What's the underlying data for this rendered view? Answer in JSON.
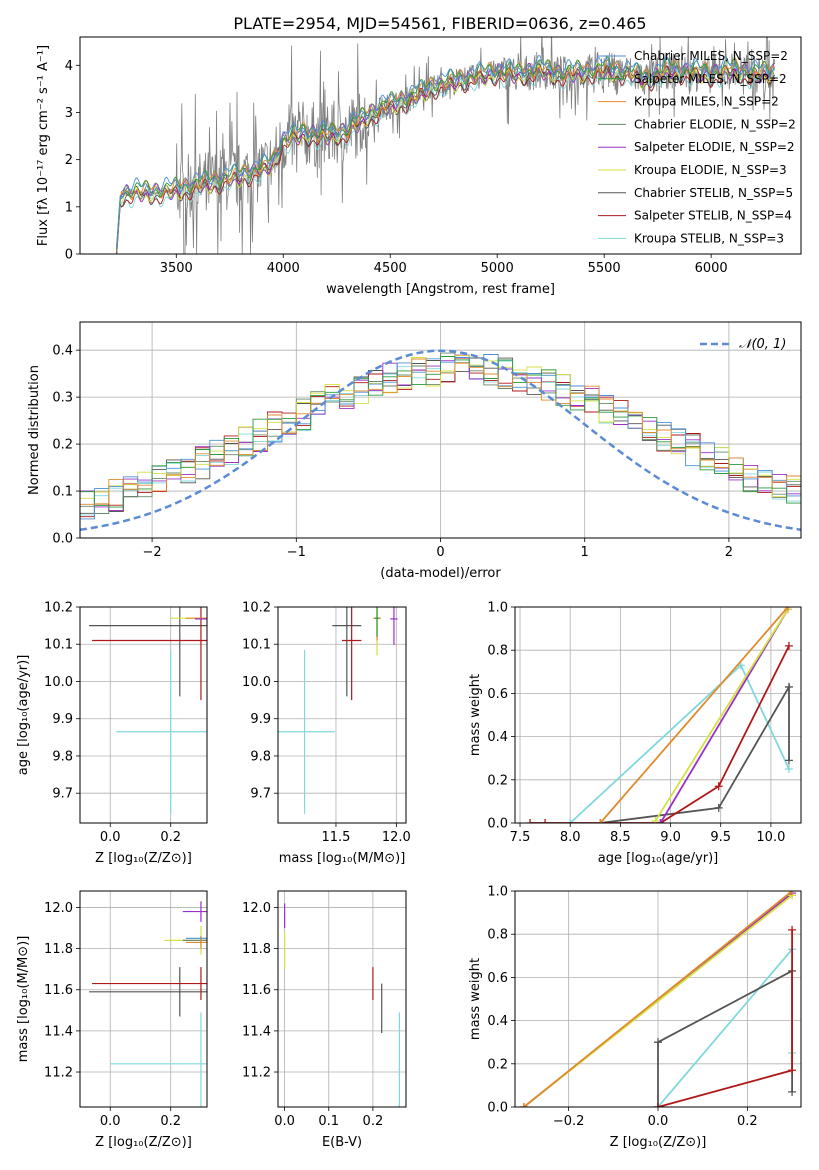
{
  "figure_title": "PLATE=2954, MJD=54561, FIBERID=0636, z=0.465",
  "colors": {
    "chabrier_miles": "#4c8fd6",
    "salpeter_miles": "#2a9a3a",
    "kroupa_miles": "#e08a2e",
    "chabrier_elodie": "#6a8a6a",
    "salpeter_elodie": "#9b30c8",
    "kroupa_elodie": "#d4e040",
    "chabrier_stelib": "#555555",
    "salpeter_stelib": "#b01818",
    "kroupa_stelib": "#80d8dc",
    "data": "#808080",
    "normal": "#5b8bd4"
  },
  "chart_data": [
    {
      "id": "spectrum",
      "type": "line",
      "xlabel": "wavelength [Angstrom, rest frame]",
      "ylabel": "Flux [fλ 10⁻¹⁷ erg cm⁻² s⁻¹ A⁻¹]",
      "xlim": [
        3050,
        6420
      ],
      "ylim": [
        0,
        4.6
      ],
      "xticks": [
        3500,
        4000,
        4500,
        5000,
        5500,
        6000
      ],
      "yticks": [
        0,
        1,
        2,
        3,
        4
      ],
      "legend_position": "top-right",
      "series": [
        {
          "name": "Chabrier MILES, N_SSP=2",
          "key": "chabrier_miles"
        },
        {
          "name": "Salpeter MILES, N_SSP=2",
          "key": "salpeter_miles"
        },
        {
          "name": "Kroupa MILES, N_SSP=2",
          "key": "kroupa_miles"
        },
        {
          "name": "Chabrier ELODIE, N_SSP=2",
          "key": "chabrier_elodie"
        },
        {
          "name": "Salpeter ELODIE, N_SSP=2",
          "key": "salpeter_elodie"
        },
        {
          "name": "Kroupa ELODIE, N_SSP=3",
          "key": "kroupa_elodie"
        },
        {
          "name": "Chabrier STELIB, N_SSP=5",
          "key": "chabrier_stelib"
        },
        {
          "name": "Salpeter STELIB, N_SSP=4",
          "key": "salpeter_stelib"
        },
        {
          "name": "Kroupa STELIB, N_SSP=3",
          "key": "kroupa_stelib"
        }
      ],
      "continuum": {
        "x": [
          3220,
          3240,
          3300,
          3400,
          3500,
          3600,
          3700,
          3800,
          3900,
          3950,
          4000,
          4100,
          4200,
          4300,
          4400,
          4500,
          4600,
          4700,
          4800,
          4900,
          5000,
          5100,
          5200,
          5300,
          5400,
          5500,
          5600,
          5700,
          5800,
          5900,
          6000,
          6100,
          6200,
          6300
        ],
        "y": [
          0.0,
          1.25,
          1.3,
          1.3,
          1.35,
          1.45,
          1.55,
          1.65,
          1.8,
          1.9,
          2.4,
          2.55,
          2.5,
          2.6,
          2.95,
          3.15,
          3.3,
          3.55,
          3.65,
          3.75,
          3.85,
          3.8,
          3.9,
          3.8,
          3.85,
          3.9,
          3.85,
          3.7,
          3.9,
          3.85,
          3.8,
          3.9,
          3.8,
          3.85
        ]
      }
    },
    {
      "id": "residuals",
      "type": "area",
      "xlabel": "(data-model)/error",
      "ylabel": "Normed distribution",
      "xlim": [
        -2.5,
        2.5
      ],
      "ylim": [
        0,
        0.46
      ],
      "xticks": [
        -2,
        -1,
        0,
        1,
        2
      ],
      "yticks": [
        0.0,
        0.1,
        0.2,
        0.3,
        0.4
      ],
      "legend_position": "top-right",
      "normal_label": "𝒩(0, 1)",
      "normal": {
        "mean": 0,
        "sigma": 1
      }
    },
    {
      "id": "age_vs_Z",
      "type": "scatter",
      "xlabel": "Z [log₁₀(Z/Z⊙)]",
      "ylabel": "age  [log₁₀(age/yr)]",
      "xlim": [
        -0.1,
        0.32
      ],
      "ylim": [
        9.62,
        10.2
      ],
      "xticks": [
        0.0,
        0.2
      ],
      "yticks": [
        9.7,
        9.8,
        9.9,
        10.0,
        10.1,
        10.2
      ],
      "points": [
        {
          "key": "kroupa_stelib",
          "x": 0.2,
          "y": 9.865,
          "xerr": 0.18,
          "yerr": 0.22
        },
        {
          "key": "chabrier_stelib",
          "x": 0.23,
          "y": 10.15,
          "xerr": 0.3,
          "yerr": 0.19
        },
        {
          "key": "salpeter_stelib",
          "x": 0.3,
          "y": 10.11,
          "xerr": 0.36,
          "yerr": 0.16
        },
        {
          "key": "kroupa_elodie",
          "x": 0.3,
          "y": 10.17,
          "xerr": 0.1,
          "yerr": 0.0
        },
        {
          "key": "kroupa_miles",
          "x": 0.3,
          "y": 10.17,
          "xerr": 0.05,
          "yerr": 0.0
        },
        {
          "key": "salpeter_elodie",
          "x": 0.3,
          "y": 10.168,
          "xerr": 0.02,
          "yerr": 0.0
        }
      ]
    },
    {
      "id": "age_vs_mass",
      "type": "scatter",
      "xlabel": "mass [log₁₀(M/M⊙)]",
      "ylabel": "",
      "xlim": [
        11.02,
        12.08
      ],
      "ylim": [
        9.62,
        10.2
      ],
      "xticks": [
        11.5,
        12.0
      ],
      "yticks": [
        9.7,
        9.8,
        9.9,
        10.0,
        10.1,
        10.2
      ],
      "points": [
        {
          "key": "kroupa_stelib",
          "x": 11.24,
          "y": 9.865,
          "xerr": 0.25,
          "yerr": 0.22
        },
        {
          "key": "chabrier_stelib",
          "x": 11.59,
          "y": 10.15,
          "xerr": 0.12,
          "yerr": 0.19
        },
        {
          "key": "salpeter_stelib",
          "x": 11.63,
          "y": 10.11,
          "xerr": 0.08,
          "yerr": 0.16
        },
        {
          "key": "kroupa_elodie",
          "x": 11.84,
          "y": 10.17,
          "xerr": 0.03,
          "yerr": 0.1
        },
        {
          "key": "kroupa_miles",
          "x": 11.84,
          "y": 10.17,
          "xerr": 0.03,
          "yerr": 0.06
        },
        {
          "key": "salpeter_elodie",
          "x": 11.98,
          "y": 10.168,
          "xerr": 0.03,
          "yerr": 0.07
        },
        {
          "key": "salpeter_miles",
          "x": 11.84,
          "y": 10.17,
          "xerr": 0.02,
          "yerr": 0.05
        }
      ]
    },
    {
      "id": "massweight_vs_age",
      "type": "line",
      "xlabel": "age  [log₁₀(age/yr)]",
      "ylabel": "mass weight",
      "xlim": [
        7.45,
        10.3
      ],
      "ylim": [
        0,
        1.0
      ],
      "xticks": [
        7.5,
        8.0,
        8.5,
        9.0,
        9.5,
        10.0
      ],
      "yticks": [
        0.0,
        0.2,
        0.4,
        0.6,
        0.8,
        1.0
      ],
      "series": [
        {
          "key": "kroupa_stelib",
          "x": [
            8.0,
            9.7,
            10.18
          ],
          "y": [
            0.0,
            0.73,
            0.25
          ]
        },
        {
          "key": "chabrier_stelib",
          "x": [
            8.3,
            9.48,
            10.18,
            10.18
          ],
          "y": [
            0.0,
            0.07,
            0.63,
            0.29
          ]
        },
        {
          "key": "salpeter_stelib",
          "x": [
            7.6,
            7.75,
            8.9,
            9.48,
            10.18
          ],
          "y": [
            0.0,
            0.0,
            0.0,
            0.17,
            0.82
          ]
        },
        {
          "key": "salpeter_elodie",
          "x": [
            8.9,
            10.17
          ],
          "y": [
            0.0,
            0.99
          ]
        },
        {
          "key": "kroupa_elodie",
          "x": [
            8.85,
            10.17
          ],
          "y": [
            0.01,
            0.99
          ]
        },
        {
          "key": "kroupa_miles",
          "x": [
            8.3,
            10.17
          ],
          "y": [
            0.0,
            1.0
          ]
        }
      ]
    },
    {
      "id": "mass_vs_Z",
      "type": "scatter",
      "xlabel": "Z [log₁₀(Z/Z⊙)]",
      "ylabel": "mass [log₁₀(M/M⊙)]",
      "xlim": [
        -0.1,
        0.32
      ],
      "ylim": [
        11.03,
        12.08
      ],
      "xticks": [
        0.0,
        0.2
      ],
      "yticks": [
        11.2,
        11.4,
        11.6,
        11.8,
        12.0
      ],
      "points": [
        {
          "key": "kroupa_stelib",
          "x": 0.3,
          "y": 11.24,
          "xerr": 0.3,
          "yerr": 0.25
        },
        {
          "key": "chabrier_stelib",
          "x": 0.23,
          "y": 11.59,
          "xerr": 0.3,
          "yerr": 0.12
        },
        {
          "key": "salpeter_stelib",
          "x": 0.3,
          "y": 11.63,
          "xerr": 0.36,
          "yerr": 0.08
        },
        {
          "key": "kroupa_elodie",
          "x": 0.3,
          "y": 11.84,
          "xerr": 0.12,
          "yerr": 0.07
        },
        {
          "key": "chabrier_elodie",
          "x": 0.3,
          "y": 11.84,
          "xerr": 0.06,
          "yerr": 0.02
        },
        {
          "key": "salpeter_elodie",
          "x": 0.3,
          "y": 11.98,
          "xerr": 0.06,
          "yerr": 0.05
        },
        {
          "key": "kroupa_miles",
          "x": 0.3,
          "y": 11.83,
          "xerr": 0.05,
          "yerr": 0.03
        },
        {
          "key": "chabrier_miles",
          "x": 0.3,
          "y": 11.85,
          "xerr": 0.05,
          "yerr": 0.0
        }
      ]
    },
    {
      "id": "mass_vs_ebv",
      "type": "scatter",
      "xlabel": "E(B-V)",
      "ylabel": "",
      "xlim": [
        -0.015,
        0.275
      ],
      "ylim": [
        11.03,
        12.08
      ],
      "xticks": [
        0.0,
        0.1,
        0.2
      ],
      "yticks": [
        11.2,
        11.4,
        11.6,
        11.8,
        12.0
      ],
      "points": [
        {
          "key": "kroupa_stelib",
          "x": 0.26,
          "y": 11.24,
          "xerr": 0.0,
          "yerr": 0.25
        },
        {
          "key": "chabrier_stelib",
          "x": 0.22,
          "y": 11.51,
          "xerr": 0.0,
          "yerr": 0.12
        },
        {
          "key": "salpeter_stelib",
          "x": 0.2,
          "y": 11.63,
          "xerr": 0.0,
          "yerr": 0.08
        },
        {
          "key": "kroupa_elodie",
          "x": 0.0,
          "y": 11.79,
          "xerr": 0.0,
          "yerr": 0.09
        },
        {
          "key": "salpeter_elodie",
          "x": 0.0,
          "y": 11.96,
          "xerr": 0.0,
          "yerr": 0.06
        }
      ]
    },
    {
      "id": "massweight_vs_Z",
      "type": "line",
      "xlabel": "Z [log₁₀(Z/Z⊙)]",
      "ylabel": "mass weight",
      "xlim": [
        -0.32,
        0.32
      ],
      "ylim": [
        0,
        1.0
      ],
      "xticks": [
        -0.2,
        0.0,
        0.2
      ],
      "yticks": [
        0.0,
        0.2,
        0.4,
        0.6,
        0.8,
        1.0
      ],
      "series": [
        {
          "key": "kroupa_stelib",
          "x": [
            0.0,
            0.3,
            0.3
          ],
          "y": [
            0.0,
            0.73,
            0.25
          ]
        },
        {
          "key": "chabrier_stelib",
          "x": [
            0.0,
            0.0,
            0.3,
            0.3
          ],
          "y": [
            0.0,
            0.3,
            0.63,
            0.07
          ]
        },
        {
          "key": "salpeter_stelib",
          "x": [
            0.0,
            0.3,
            0.3
          ],
          "y": [
            0.0,
            0.17,
            0.82
          ]
        },
        {
          "key": "salpeter_elodie",
          "x": [
            -0.3,
            0.3
          ],
          "y": [
            0.0,
            0.99
          ]
        },
        {
          "key": "kroupa_elodie",
          "x": [
            -0.3,
            0.3
          ],
          "y": [
            0.0,
            0.98
          ]
        },
        {
          "key": "kroupa_miles",
          "x": [
            -0.3,
            0.3
          ],
          "y": [
            0.0,
            1.0
          ]
        }
      ]
    }
  ]
}
